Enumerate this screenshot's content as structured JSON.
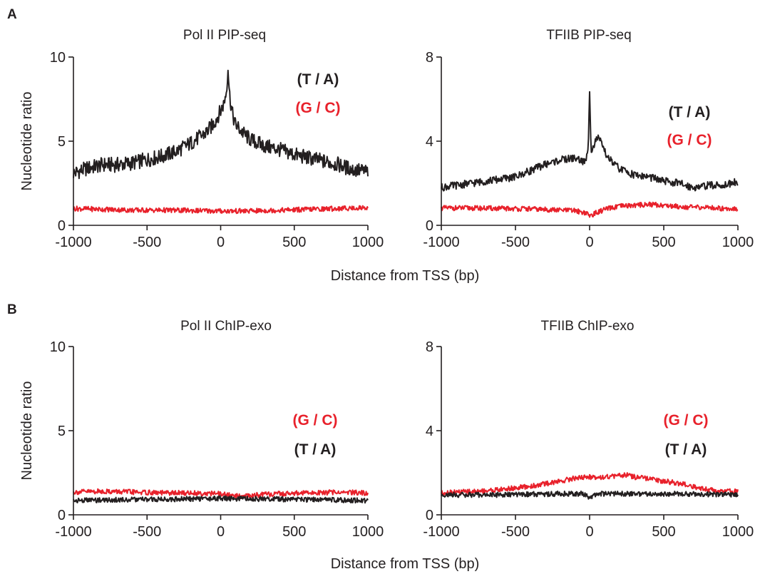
{
  "panels": [
    {
      "letter": "A"
    },
    {
      "letter": "B"
    }
  ],
  "shared_xlabels": [
    "Distance from TSS (bp)",
    "Distance from TSS (bp)"
  ],
  "colors": {
    "ta": "#231f20",
    "gc": "#e8212b"
  },
  "chart_data": [
    {
      "type": "line",
      "title": "Pol II PIP-seq",
      "xlabel": "",
      "ylabel": "Nucleotide ratio",
      "xlim": [
        -1000,
        1000
      ],
      "ylim": [
        0,
        10
      ],
      "xticks": [
        "-1000",
        "-500",
        "0",
        "500",
        "1000"
      ],
      "yticks": [
        "0",
        "5",
        "10"
      ],
      "legend": [
        "(T / A)",
        "(G / C)"
      ],
      "series": [
        {
          "name": "(T / A)",
          "color": "#231f20",
          "x": [
            -1000,
            -900,
            -800,
            -700,
            -600,
            -500,
            -400,
            -300,
            -200,
            -150,
            -100,
            -50,
            0,
            20,
            40,
            50,
            60,
            80,
            100,
            150,
            200,
            300,
            400,
            500,
            600,
            700,
            800,
            900,
            1000
          ],
          "y": [
            3.1,
            3.4,
            3.6,
            3.6,
            3.7,
            3.9,
            4.1,
            4.4,
            4.9,
            5.2,
            5.5,
            6.0,
            6.8,
            7.2,
            8.0,
            9.4,
            7.8,
            6.6,
            6.0,
            5.5,
            5.1,
            4.7,
            4.5,
            4.2,
            4.0,
            3.8,
            3.6,
            3.3,
            3.2
          ]
        },
        {
          "name": "(G / C)",
          "color": "#e8212b",
          "x": [
            -1000,
            -800,
            -600,
            -400,
            -200,
            0,
            200,
            400,
            600,
            800,
            1000
          ],
          "y": [
            1.0,
            0.95,
            0.9,
            0.9,
            0.88,
            0.85,
            0.85,
            0.9,
            0.95,
            1.0,
            1.05
          ]
        }
      ]
    },
    {
      "type": "line",
      "title": "TFIIB PIP-seq",
      "xlabel": "",
      "ylabel": "",
      "xlim": [
        -1000,
        1000
      ],
      "ylim": [
        0,
        8
      ],
      "xticks": [
        "-1000",
        "-500",
        "0",
        "500",
        "1000"
      ],
      "yticks": [
        "0",
        "4",
        "8"
      ],
      "legend": [
        "(T / A)",
        "(G / C)"
      ],
      "series": [
        {
          "name": "(T / A)",
          "color": "#231f20",
          "x": [
            -1000,
            -900,
            -800,
            -700,
            -600,
            -500,
            -400,
            -300,
            -200,
            -100,
            -30,
            -10,
            0,
            10,
            30,
            50,
            80,
            100,
            150,
            200,
            300,
            400,
            500,
            600,
            700,
            800,
            900,
            1000
          ],
          "y": [
            1.8,
            1.9,
            2.0,
            2.1,
            2.2,
            2.3,
            2.6,
            2.9,
            3.1,
            3.2,
            3.0,
            3.5,
            6.5,
            3.6,
            3.8,
            4.2,
            3.9,
            3.5,
            3.0,
            2.7,
            2.4,
            2.3,
            2.1,
            2.0,
            1.8,
            1.9,
            1.9,
            2.1
          ]
        },
        {
          "name": "(G / C)",
          "color": "#e8212b",
          "x": [
            -1000,
            -800,
            -600,
            -400,
            -200,
            -100,
            -30,
            0,
            30,
            100,
            200,
            300,
            400,
            500,
            600,
            700,
            800,
            900,
            1000
          ],
          "y": [
            0.82,
            0.82,
            0.8,
            0.78,
            0.72,
            0.7,
            0.6,
            0.45,
            0.55,
            0.75,
            0.9,
            0.95,
            1.0,
            0.95,
            0.9,
            0.85,
            0.85,
            0.8,
            0.8
          ]
        }
      ]
    },
    {
      "type": "line",
      "title": "Pol II ChIP-exo",
      "xlabel": "",
      "ylabel": "Nucleotide ratio",
      "xlim": [
        -1000,
        1000
      ],
      "ylim": [
        0,
        10
      ],
      "xticks": [
        "-1000",
        "-500",
        "0",
        "500",
        "1000"
      ],
      "yticks": [
        "0",
        "5",
        "10"
      ],
      "legend": [
        "(G / C)",
        "(T / A)"
      ],
      "series": [
        {
          "name": "(G / C)",
          "color": "#e8212b",
          "x": [
            -1000,
            -800,
            -600,
            -400,
            -200,
            0,
            100,
            200,
            400,
            600,
            800,
            1000
          ],
          "y": [
            1.35,
            1.4,
            1.35,
            1.3,
            1.3,
            1.25,
            1.1,
            1.15,
            1.25,
            1.3,
            1.35,
            1.3
          ]
        },
        {
          "name": "(T / A)",
          "color": "#231f20",
          "x": [
            -1000,
            -800,
            -600,
            -400,
            -200,
            0,
            200,
            400,
            600,
            800,
            1000
          ],
          "y": [
            0.85,
            0.88,
            0.9,
            0.92,
            0.95,
            0.98,
            0.95,
            0.93,
            0.9,
            0.88,
            0.85
          ]
        }
      ]
    },
    {
      "type": "line",
      "title": "TFIIB ChIP-exo",
      "xlabel": "",
      "ylabel": "",
      "xlim": [
        -1000,
        1000
      ],
      "ylim": [
        0,
        8
      ],
      "xticks": [
        "-1000",
        "-500",
        "0",
        "500",
        "1000"
      ],
      "yticks": [
        "0",
        "4",
        "8"
      ],
      "legend": [
        "(G / C)",
        "(T / A)"
      ],
      "series": [
        {
          "name": "(G / C)",
          "color": "#e8212b",
          "x": [
            -1000,
            -800,
            -600,
            -400,
            -200,
            -100,
            0,
            100,
            200,
            250,
            300,
            400,
            500,
            600,
            700,
            800,
            900,
            1000
          ],
          "y": [
            1.05,
            1.1,
            1.2,
            1.35,
            1.6,
            1.75,
            1.8,
            1.8,
            1.85,
            1.9,
            1.8,
            1.7,
            1.6,
            1.5,
            1.35,
            1.2,
            1.15,
            1.1
          ]
        },
        {
          "name": "(T / A)",
          "color": "#231f20",
          "x": [
            -1000,
            -800,
            -600,
            -400,
            -200,
            -50,
            0,
            50,
            200,
            400,
            600,
            800,
            1000
          ],
          "y": [
            0.95,
            0.95,
            0.95,
            0.98,
            1.0,
            1.0,
            0.8,
            1.0,
            1.0,
            1.0,
            1.0,
            0.98,
            0.95
          ]
        }
      ]
    }
  ]
}
